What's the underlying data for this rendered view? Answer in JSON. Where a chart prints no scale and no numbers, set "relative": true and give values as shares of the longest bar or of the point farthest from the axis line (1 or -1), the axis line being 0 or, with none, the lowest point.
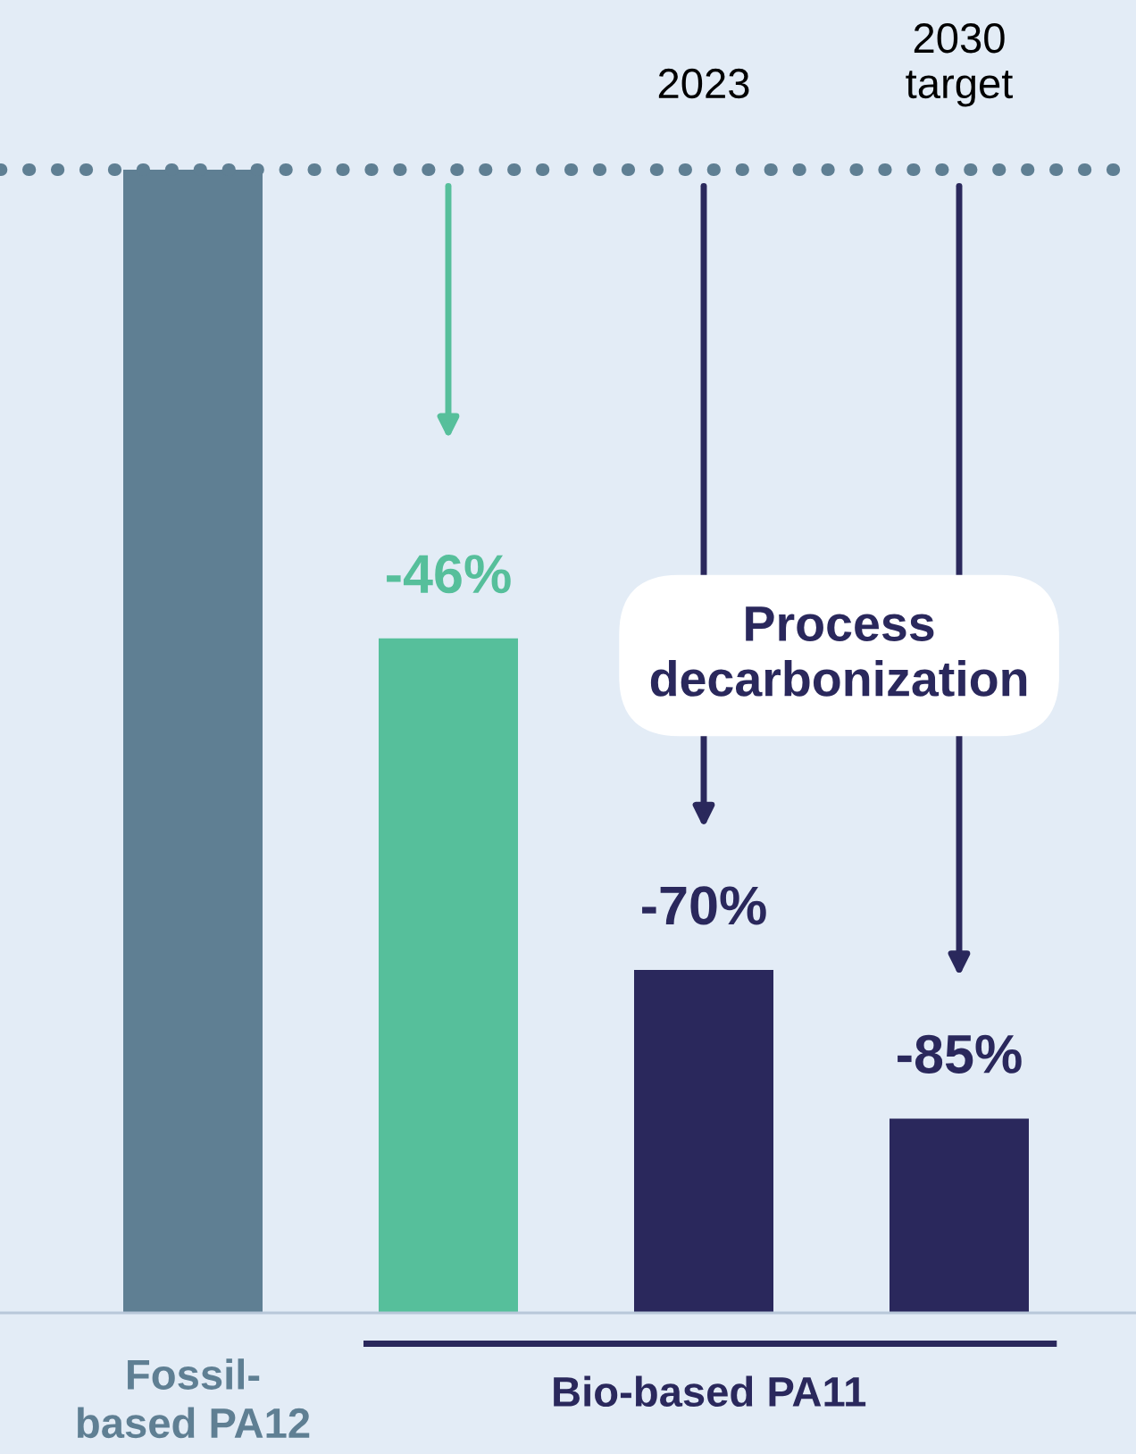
{
  "chart_data": {
    "type": "bar",
    "relative": true,
    "categories": [
      "Fossil-\nbased PA12",
      null,
      null,
      null
    ],
    "values": [
      1,
      0.59,
      0.3,
      0.17
    ],
    "colors": [
      "#5f7f93",
      "#56bf9b",
      "#2a285c",
      "#2a285c"
    ],
    "ref_lines": [
      {
        "axis": "y",
        "value": 1,
        "line_style": "dotted",
        "color": "#5f7f93"
      }
    ],
    "annotations": [
      "Bio-based PA11",
      "2023",
      "2030\ntarget",
      "Process\ndecarbonization",
      "-46%",
      "-70%",
      "-85%"
    ]
  }
}
